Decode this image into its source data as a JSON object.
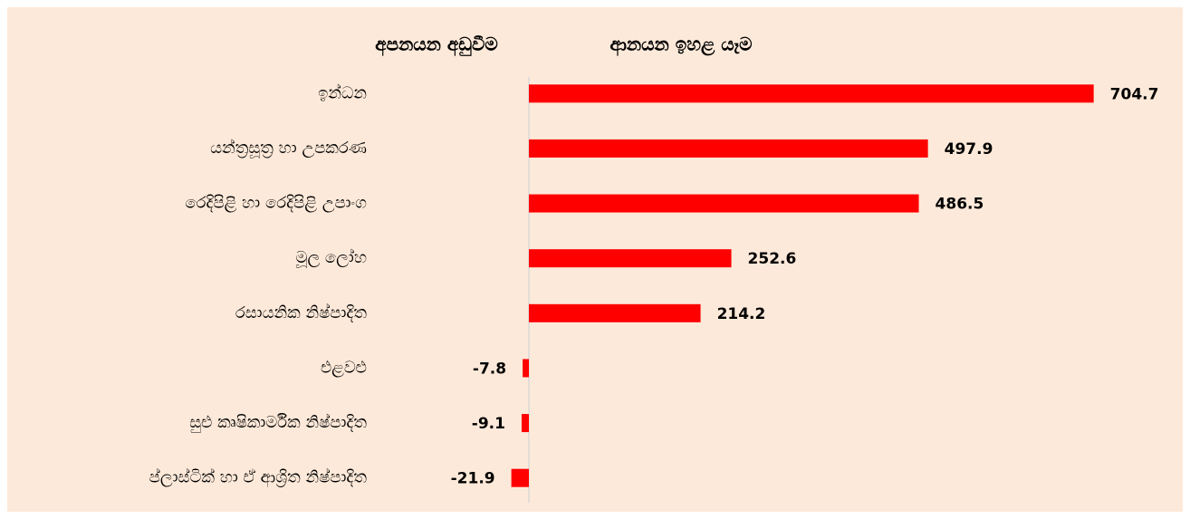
{
  "chart_data": {
    "type": "barh",
    "annotations": [
      "අපනයන අඩුවීම",
      "ආනයන ඉහළ යෑම"
    ],
    "categories": [
      "ඉන්ධන",
      "යන්ත්‍රසූත්‍ර හා උපකරණ",
      "රෙදිපිළි හා රෙදිපිළි උපාංග",
      "මූල ලෝහ",
      "රසායනික නිෂ්පාදිත",
      "එළවළු",
      "සුළු කෘෂිකාර්මික නිෂ්පාදිත",
      "ප්ලාස්ටික් හා ඒ ආශ්‍රිත නිෂ්පාදිත"
    ],
    "values": [
      704.7,
      497.9,
      486.5,
      252.6,
      214.2,
      -7.8,
      -9.1,
      -21.9
    ],
    "color": "#ff0000",
    "xlim": [
      -100,
      800
    ]
  }
}
